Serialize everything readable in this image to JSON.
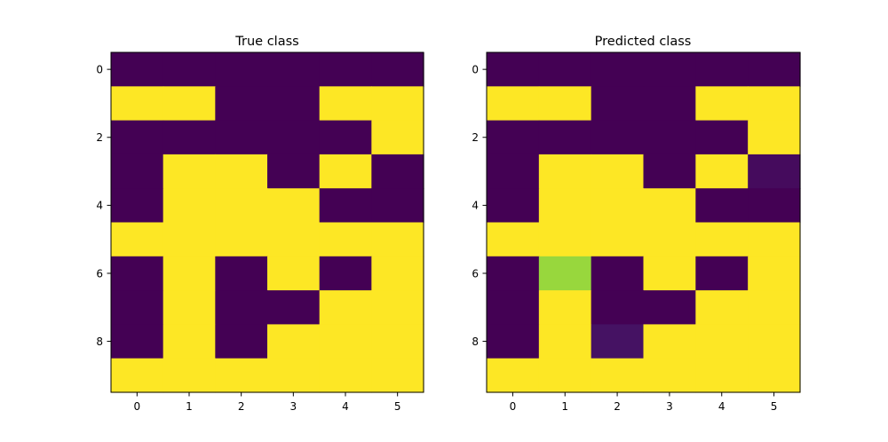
{
  "figure": {
    "background": "#ffffff"
  },
  "colormap": {
    "name": "viridis",
    "low_color": "#440154",
    "high_color": "#fde725"
  },
  "chart_data": [
    {
      "type": "heatmap",
      "title": "True class",
      "x_ticks": [
        "0",
        "1",
        "2",
        "3",
        "4",
        "5"
      ],
      "y_ticks": [
        "0",
        "2",
        "4",
        "6",
        "8"
      ],
      "y_tick_values": [
        0,
        2,
        4,
        6,
        8
      ],
      "xlim": [
        -0.5,
        5.5
      ],
      "ylim": [
        9.5,
        -0.5
      ],
      "value_range": [
        0,
        1
      ],
      "grid": false,
      "values": [
        [
          0,
          0,
          0,
          0,
          0,
          0
        ],
        [
          1,
          1,
          0,
          0,
          1,
          1
        ],
        [
          0,
          0,
          0,
          0,
          0,
          1
        ],
        [
          0,
          1,
          1,
          0,
          1,
          0
        ],
        [
          0,
          1,
          1,
          1,
          0,
          0
        ],
        [
          1,
          1,
          1,
          1,
          1,
          1
        ],
        [
          0,
          1,
          0,
          1,
          0,
          1
        ],
        [
          0,
          1,
          0,
          0,
          1,
          1
        ],
        [
          0,
          1,
          0,
          1,
          1,
          1
        ],
        [
          1,
          1,
          1,
          1,
          1,
          1
        ]
      ]
    },
    {
      "type": "heatmap",
      "title": "Predicted class",
      "x_ticks": [
        "0",
        "1",
        "2",
        "3",
        "4",
        "5"
      ],
      "y_ticks": [
        "0",
        "2",
        "4",
        "6",
        "8"
      ],
      "y_tick_values": [
        0,
        2,
        4,
        6,
        8
      ],
      "xlim": [
        -0.5,
        5.5
      ],
      "ylim": [
        9.5,
        -0.5
      ],
      "value_range": [
        0,
        1
      ],
      "grid": false,
      "values": [
        [
          0,
          0,
          0,
          0,
          0,
          0
        ],
        [
          1,
          1,
          0,
          0,
          1,
          1
        ],
        [
          0,
          0,
          0,
          0,
          0,
          1
        ],
        [
          0,
          1,
          1,
          0,
          1,
          0.03
        ],
        [
          0,
          1,
          1,
          1,
          0,
          0
        ],
        [
          1,
          1,
          1,
          1,
          1,
          1
        ],
        [
          0,
          0.85,
          0,
          1,
          0,
          1
        ],
        [
          0,
          1,
          0,
          0,
          1,
          1
        ],
        [
          0,
          1,
          0.05,
          1,
          1,
          1
        ],
        [
          1,
          1,
          1,
          1,
          1,
          1
        ]
      ]
    }
  ]
}
